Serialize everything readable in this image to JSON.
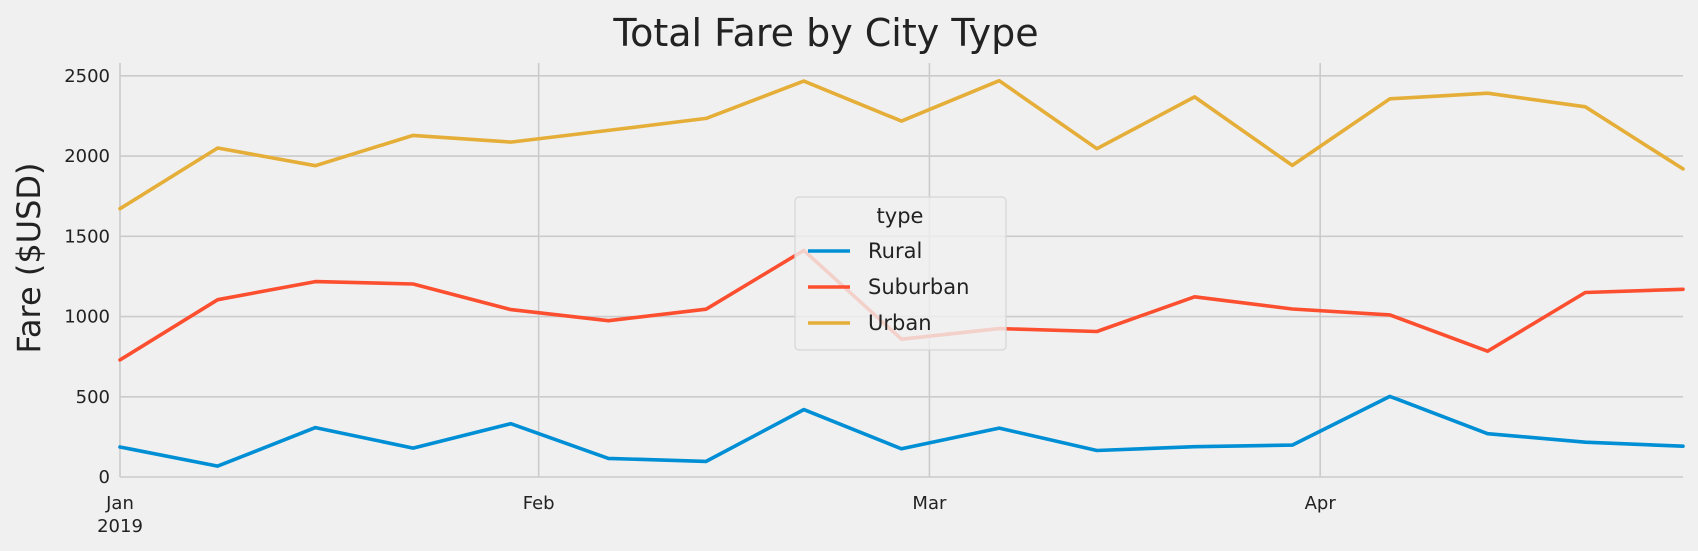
{
  "chart_data": {
    "type": "line",
    "title": "Total Fare by City Type",
    "xlabel": "",
    "ylabel": "Fare ($USD)",
    "x": [
      "2019-01-06",
      "2019-01-13",
      "2019-01-20",
      "2019-01-27",
      "2019-02-03",
      "2019-02-10",
      "2019-02-17",
      "2019-02-24",
      "2019-03-03",
      "2019-03-10",
      "2019-03-17",
      "2019-03-24",
      "2019-03-31",
      "2019-04-07",
      "2019-04-14",
      "2019-04-21",
      "2019-04-28"
    ],
    "xlim": [
      "2019-01-06",
      "2019-04-28"
    ],
    "ylim": [
      0,
      2580
    ],
    "yticks": [
      0,
      500,
      1000,
      1500,
      2000,
      2500
    ],
    "xticks": [
      {
        "date": "2019-01-06",
        "label": "Jan",
        "sublabel": "2019"
      },
      {
        "date": "2019-02-05",
        "label": "Feb",
        "sublabel": ""
      },
      {
        "date": "2019-03-05",
        "label": "Mar",
        "sublabel": ""
      },
      {
        "date": "2019-04-02",
        "label": "Apr",
        "sublabel": ""
      }
    ],
    "grid": true,
    "legend": {
      "title": "type",
      "placement": "center"
    },
    "series": [
      {
        "name": "Rural",
        "color": "#008fd5",
        "values": [
          187,
          68,
          308,
          180,
          332,
          116,
          97,
          420,
          176,
          305,
          165,
          189,
          199,
          502,
          270,
          217,
          192
        ]
      },
      {
        "name": "Suburban",
        "color": "#fc4f30",
        "values": [
          730,
          1105,
          1218,
          1203,
          1043,
          974,
          1046,
          1412,
          859,
          925,
          907,
          1123,
          1047,
          1010,
          784,
          1150,
          1170
        ]
      },
      {
        "name": "Urban",
        "color": "#e5ae38",
        "values": [
          1672,
          2050,
          1940,
          2129,
          2087,
          2160,
          2235,
          2467,
          2218,
          2470,
          2046,
          2369,
          1942,
          2357,
          2392,
          2307,
          1920
        ]
      }
    ]
  }
}
